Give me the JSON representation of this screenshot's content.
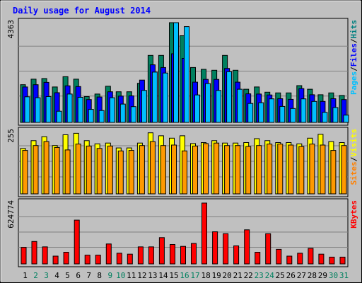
{
  "chart_data": {
    "type": "bar",
    "title": "Daily usage for August 2014",
    "categories": [
      "1",
      "2",
      "3",
      "4",
      "5",
      "6",
      "7",
      "8",
      "9",
      "10",
      "11",
      "12",
      "13",
      "14",
      "15",
      "16",
      "17",
      "18",
      "19",
      "20",
      "21",
      "22",
      "23",
      "24",
      "25",
      "26",
      "27",
      "28",
      "29",
      "30",
      "31"
    ],
    "weekend_days": [
      "2",
      "3",
      "9",
      "10",
      "16",
      "17",
      "23",
      "24",
      "30",
      "31"
    ],
    "panels": [
      {
        "id": "hits-files-pages",
        "ymax_label": "4363",
        "ymax": 4363,
        "legend": [
          {
            "name": "Pages",
            "color": "#00c0ff"
          },
          {
            "name": "/",
            "color": "#000000"
          },
          {
            "name": "Files",
            "color": "#0000ff"
          },
          {
            "name": "/",
            "color": "#000000"
          },
          {
            "name": "Hits",
            "color": "#008080"
          }
        ],
        "series": [
          {
            "name": "Hits",
            "color": "#00805f",
            "values": [
              1650,
              1890,
              1920,
              1550,
              2000,
              1890,
              1130,
              1240,
              1580,
              1340,
              1340,
              1710,
              2930,
              2930,
              4363,
              3790,
              2400,
              2320,
              2280,
              2930,
              2280,
              1450,
              1550,
              1320,
              1290,
              1290,
              1610,
              1450,
              1210,
              1290,
              1180
            ]
          },
          {
            "name": "Files",
            "color": "#0000ff",
            "values": [
              1550,
              1650,
              1750,
              1300,
              1600,
              1570,
              1000,
              1110,
              1340,
              1150,
              1160,
              1850,
              2520,
              2400,
              3000,
              2800,
              1760,
              1880,
              1880,
              2360,
              1760,
              1250,
              1240,
              1200,
              1040,
              1010,
              1480,
              1210,
              920,
              1040,
              1000
            ]
          },
          {
            "name": "Pages",
            "color": "#00bfff",
            "values": [
              1120,
              1080,
              1130,
              490,
              1240,
              1100,
              570,
              520,
              1080,
              800,
              690,
              1400,
              2200,
              2160,
              4363,
              4190,
              1200,
              1700,
              1400,
              2220,
              1450,
              830,
              860,
              1030,
              700,
              610,
              1030,
              920,
              440,
              650,
              320
            ]
          }
        ]
      },
      {
        "id": "visits-sites",
        "ymax_label": "255",
        "ymax": 255,
        "legend": [
          {
            "name": "Sites",
            "color": "#ff8000"
          },
          {
            "name": "/",
            "color": "#000000"
          },
          {
            "name": "Visits",
            "color": "#ffff00"
          }
        ],
        "series": [
          {
            "name": "Visits",
            "color": "#ffff00",
            "values": [
              186,
              218,
              234,
              198,
              242,
              248,
              218,
              205,
              208,
              188,
              188,
              208,
              250,
              238,
              228,
              238,
              206,
              210,
              218,
              208,
              208,
              210,
              226,
              218,
              210,
              210,
              205,
              228,
              244,
              214,
              210
            ]
          },
          {
            "name": "Sites",
            "color": "#ff9900",
            "values": [
              178,
              198,
              214,
              190,
              180,
              204,
              196,
              186,
              196,
              176,
              178,
              198,
              214,
              198,
              200,
              176,
              196,
              206,
              208,
              198,
              198,
              194,
              198,
              204,
              204,
              200,
              194,
              204,
              200,
              178,
              198
            ]
          }
        ]
      },
      {
        "id": "kbytes",
        "ymax_label": "624774",
        "ymax": 624774,
        "legend": [
          {
            "name": "KBytes",
            "color": "#ff0000"
          }
        ],
        "series": [
          {
            "name": "KBytes",
            "color": "#ff0000",
            "values": [
              170000,
              230000,
              175000,
              80000,
              120000,
              450000,
              90000,
              90000,
              205000,
              110000,
              100000,
              175000,
              175000,
              270000,
              200000,
              180000,
              210000,
              624774,
              330000,
              310000,
              185000,
              350000,
              120000,
              310000,
              150000,
              80000,
              110000,
              160000,
              100000,
              70000,
              70000
            ]
          }
        ]
      }
    ]
  }
}
